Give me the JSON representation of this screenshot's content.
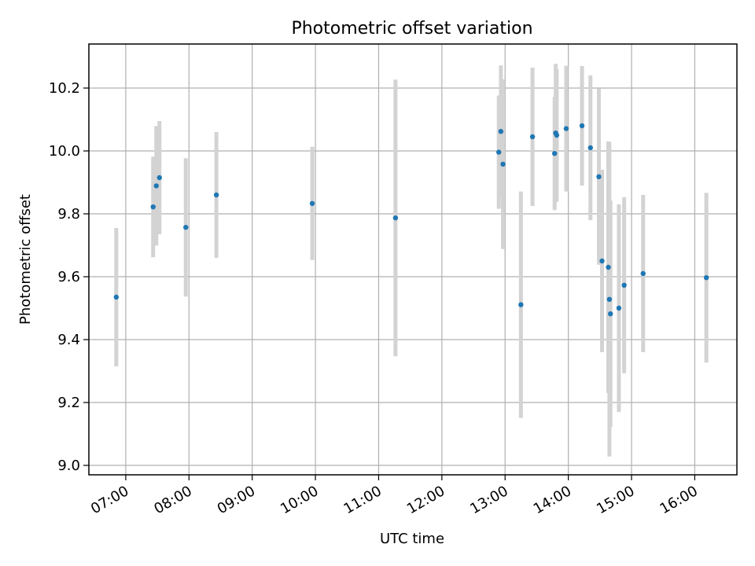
{
  "chart_data": {
    "type": "scatter",
    "title": "Photometric offset variation",
    "xlabel": "UTC time",
    "ylabel": "Photometric offset",
    "xlim": [
      "06:25",
      "16:40"
    ],
    "ylim": [
      8.97,
      10.34
    ],
    "x_ticks": [
      "07:00",
      "08:00",
      "09:00",
      "10:00",
      "11:00",
      "12:00",
      "13:00",
      "14:00",
      "15:00",
      "16:00"
    ],
    "y_ticks": [
      9.0,
      9.2,
      9.4,
      9.6,
      9.8,
      10.0,
      10.2
    ],
    "y_tick_labels": [
      "9.0",
      "9.2",
      "9.4",
      "9.6",
      "9.8",
      "10.0",
      "10.2"
    ],
    "grid": true,
    "point_color": "#1f77b4",
    "errorbar_color": "#d3d3d3",
    "points": [
      {
        "x": "06:51",
        "y": 9.535,
        "err": 0.22
      },
      {
        "x": "07:26",
        "y": 9.822,
        "err": 0.16
      },
      {
        "x": "07:29",
        "y": 9.889,
        "err": 0.19
      },
      {
        "x": "07:32",
        "y": 9.915,
        "err": 0.18
      },
      {
        "x": "07:57",
        "y": 9.757,
        "err": 0.22
      },
      {
        "x": "08:26",
        "y": 9.86,
        "err": 0.2
      },
      {
        "x": "09:57",
        "y": 9.833,
        "err": 0.18
      },
      {
        "x": "11:16",
        "y": 9.787,
        "err": 0.44
      },
      {
        "x": "12:54",
        "y": 9.996,
        "err": 0.18
      },
      {
        "x": "12:56",
        "y": 10.062,
        "err": 0.21
      },
      {
        "x": "12:58",
        "y": 9.958,
        "err": 0.27
      },
      {
        "x": "13:15",
        "y": 9.511,
        "err": 0.36
      },
      {
        "x": "13:26",
        "y": 10.045,
        "err": 0.22
      },
      {
        "x": "13:47",
        "y": 9.992,
        "err": 0.18
      },
      {
        "x": "13:48",
        "y": 10.057,
        "err": 0.22
      },
      {
        "x": "13:49",
        "y": 10.05,
        "err": 0.21
      },
      {
        "x": "13:58",
        "y": 10.071,
        "err": 0.2
      },
      {
        "x": "14:13",
        "y": 10.08,
        "err": 0.19
      },
      {
        "x": "14:21",
        "y": 10.01,
        "err": 0.23
      },
      {
        "x": "14:29",
        "y": 9.918,
        "err": 0.28
      },
      {
        "x": "14:32",
        "y": 9.65,
        "err": 0.29
      },
      {
        "x": "14:38",
        "y": 9.63,
        "err": 0.4
      },
      {
        "x": "14:39",
        "y": 9.528,
        "err": 0.5
      },
      {
        "x": "14:40",
        "y": 9.482,
        "err": 0.36
      },
      {
        "x": "14:48",
        "y": 9.5,
        "err": 0.33
      },
      {
        "x": "14:53",
        "y": 9.573,
        "err": 0.28
      },
      {
        "x": "15:11",
        "y": 9.61,
        "err": 0.25
      },
      {
        "x": "16:11",
        "y": 9.597,
        "err": 0.27
      }
    ]
  }
}
